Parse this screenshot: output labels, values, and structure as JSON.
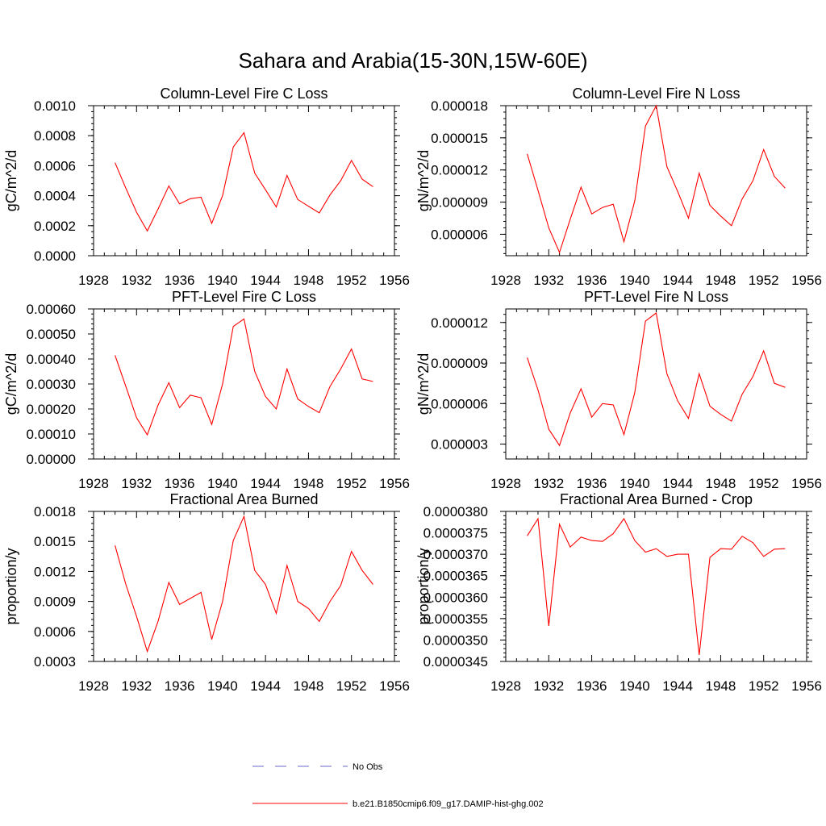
{
  "figure": {
    "title": "Sahara and Arabia(15-30N,15W-60E)",
    "line_color": "#ff0000",
    "obs_color": "#6a6acd"
  },
  "legend": {
    "obs_label": "No Obs",
    "model_label": "b.e21.B1850cmip6.f09_g17.DAMIP-hist-ghg.002"
  },
  "chart_data": [
    {
      "type": "line",
      "title": "Column-Level Fire C Loss",
      "ylabel": "gC/m^2/d",
      "xlim": [
        1928,
        1956
      ],
      "ylim": [
        0,
        0.001
      ],
      "xticks": [
        1928,
        1932,
        1936,
        1940,
        1944,
        1948,
        1952,
        1956
      ],
      "yticks": [
        "0.0000",
        "0.0002",
        "0.0004",
        "0.0006",
        "0.0008",
        "0.0010"
      ],
      "x": [
        1930,
        1931,
        1932,
        1933,
        1934,
        1935,
        1936,
        1937,
        1938,
        1939,
        1940,
        1941,
        1942,
        1943,
        1944,
        1945,
        1946,
        1947,
        1948,
        1949,
        1950,
        1951,
        1952,
        1953,
        1954
      ],
      "values": [
        0.00062,
        0.00045,
        0.00029,
        0.000165,
        0.00031,
        0.000465,
        0.000345,
        0.00038,
        0.00039,
        0.000215,
        0.0004,
        0.000725,
        0.00082,
        0.00055,
        0.00044,
        0.000325,
        0.000535,
        0.000375,
        0.00033,
        0.000285,
        0.000405,
        0.0005,
        0.000635,
        0.00051,
        0.00046
      ]
    },
    {
      "type": "line",
      "title": "Column-Level Fire N Loss",
      "ylabel": "gN/m^2/d",
      "xlim": [
        1928,
        1956
      ],
      "ylim": [
        4e-06,
        1.8e-05
      ],
      "xticks": [
        1928,
        1932,
        1936,
        1940,
        1944,
        1948,
        1952,
        1956
      ],
      "yticks": [
        "0.000006",
        "0.000009",
        "0.000012",
        "0.000015",
        "0.000018"
      ],
      "x": [
        1930,
        1931,
        1932,
        1933,
        1934,
        1935,
        1936,
        1937,
        1938,
        1939,
        1940,
        1941,
        1942,
        1943,
        1944,
        1945,
        1946,
        1947,
        1948,
        1949,
        1950,
        1951,
        1952,
        1953,
        1954
      ],
      "values": [
        1.35e-05,
        1.01e-05,
        6.6e-06,
        4.3e-06,
        7.4e-06,
        1.04e-05,
        7.9e-06,
        8.5e-06,
        8.8e-06,
        5.3e-06,
        9.1e-06,
        1.61e-05,
        1.8e-05,
        1.23e-05,
        1e-05,
        7.5e-06,
        1.17e-05,
        8.7e-06,
        7.7e-06,
        6.8e-06,
        9.3e-06,
        1.1e-05,
        1.39e-05,
        1.14e-05,
        1.03e-05
      ]
    },
    {
      "type": "line",
      "title": "PFT-Level Fire C Loss",
      "ylabel": "gC/m^2/d",
      "xlim": [
        1928,
        1956
      ],
      "ylim": [
        0,
        0.0006
      ],
      "xticks": [
        1928,
        1932,
        1936,
        1940,
        1944,
        1948,
        1952,
        1956
      ],
      "yticks": [
        "0.00000",
        "0.00010",
        "0.00020",
        "0.00030",
        "0.00040",
        "0.00050",
        "0.00060"
      ],
      "x": [
        1930,
        1931,
        1932,
        1933,
        1934,
        1935,
        1936,
        1937,
        1938,
        1939,
        1940,
        1941,
        1942,
        1943,
        1944,
        1945,
        1946,
        1947,
        1948,
        1949,
        1950,
        1951,
        1952,
        1953,
        1954
      ],
      "values": [
        0.000415,
        0.00029,
        0.000165,
        9.65e-05,
        0.000215,
        0.000305,
        0.000205,
        0.000255,
        0.000245,
        0.000138,
        0.0003,
        0.00053,
        0.00056,
        0.00035,
        0.00025,
        0.0002,
        0.00036,
        0.00024,
        0.00021,
        0.000185,
        0.00029,
        0.00036,
        0.00044,
        0.00032,
        0.00031
      ]
    },
    {
      "type": "line",
      "title": "PFT-Level Fire N Loss",
      "ylabel": "gN/m^2/d",
      "xlim": [
        1928,
        1956
      ],
      "ylim": [
        1.9e-06,
        1.3e-05
      ],
      "xticks": [
        1928,
        1932,
        1936,
        1940,
        1944,
        1948,
        1952,
        1956
      ],
      "yticks": [
        "0.000003",
        "0.000006",
        "0.000009",
        "0.000012"
      ],
      "x": [
        1930,
        1931,
        1932,
        1933,
        1934,
        1935,
        1936,
        1937,
        1938,
        1939,
        1940,
        1941,
        1942,
        1943,
        1944,
        1945,
        1946,
        1947,
        1948,
        1949,
        1950,
        1951,
        1952,
        1953,
        1954
      ],
      "values": [
        9.4e-06,
        7e-06,
        4.1e-06,
        2.9e-06,
        5.3e-06,
        7.1e-06,
        5e-06,
        6e-06,
        5.9e-06,
        3.7e-06,
        6.8e-06,
        1.21e-05,
        1.27e-05,
        8.2e-06,
        6.2e-06,
        4.9e-06,
        8.2e-06,
        5.8e-06,
        5.2e-06,
        4.7e-06,
        6.7e-06,
        8e-06,
        9.9e-06,
        7.5e-06,
        7.2e-06
      ]
    },
    {
      "type": "line",
      "title": "Fractional Area Burned",
      "ylabel": "proportion/y",
      "xlim": [
        1928,
        1956
      ],
      "ylim": [
        0.0003,
        0.0018
      ],
      "xticks": [
        1928,
        1932,
        1936,
        1940,
        1944,
        1948,
        1952,
        1956
      ],
      "yticks": [
        "0.0003",
        "0.0006",
        "0.0009",
        "0.0012",
        "0.0015",
        "0.0018"
      ],
      "x": [
        1930,
        1931,
        1932,
        1933,
        1934,
        1935,
        1936,
        1937,
        1938,
        1939,
        1940,
        1941,
        1942,
        1943,
        1944,
        1945,
        1946,
        1947,
        1948,
        1949,
        1950,
        1951,
        1952,
        1953,
        1954
      ],
      "values": [
        0.00146,
        0.00107,
        0.00075,
        0.0004,
        0.0007,
        0.00109,
        0.00087,
        0.00093,
        0.00099,
        0.00052,
        0.0009,
        0.00151,
        0.00175,
        0.00121,
        0.00107,
        0.00078,
        0.00126,
        0.0009,
        0.00083,
        0.0007,
        0.0009,
        0.00106,
        0.0014,
        0.00121,
        0.00107
      ]
    },
    {
      "type": "line",
      "title": "Fractional Area Burned - Crop",
      "ylabel": "proportion/y",
      "xlim": [
        1928,
        1956
      ],
      "ylim": [
        3.45e-05,
        3.8e-05
      ],
      "xticks": [
        1928,
        1932,
        1936,
        1940,
        1944,
        1948,
        1952,
        1956
      ],
      "yticks": [
        "0.0000345",
        "0.0000350",
        "0.0000355",
        "0.0000360",
        "0.0000365",
        "0.0000370",
        "0.0000375",
        "0.0000380"
      ],
      "x": [
        1930,
        1931,
        1932,
        1933,
        1934,
        1935,
        1936,
        1937,
        1938,
        1939,
        1940,
        1941,
        1942,
        1943,
        1944,
        1945,
        1946,
        1947,
        1948,
        1949,
        1950,
        1951,
        1952,
        1953,
        1954
      ],
      "values": [
        3.743e-05,
        3.783e-05,
        3.533e-05,
        3.77e-05,
        3.717e-05,
        3.74e-05,
        3.732e-05,
        3.73e-05,
        3.748e-05,
        3.783e-05,
        3.732e-05,
        3.705e-05,
        3.713e-05,
        3.695e-05,
        3.7e-05,
        3.7e-05,
        3.465e-05,
        3.693e-05,
        3.713e-05,
        3.712e-05,
        3.742e-05,
        3.727e-05,
        3.695e-05,
        3.712e-05,
        3.713e-05
      ]
    }
  ]
}
